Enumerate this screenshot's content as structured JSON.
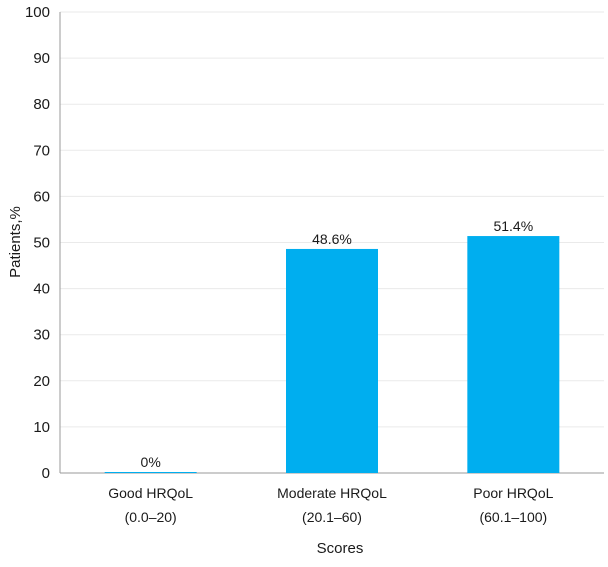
{
  "chart_data": {
    "type": "bar",
    "title": "",
    "xlabel": "Scores",
    "ylabel": "Patients,%",
    "ylim": [
      0,
      100
    ],
    "yticks": [
      0,
      10,
      20,
      30,
      40,
      50,
      60,
      70,
      80,
      90,
      100
    ],
    "grid": true,
    "categories": [
      [
        "Good HRQoL",
        "(0.0–20)"
      ],
      [
        "Moderate HRQoL",
        "(20.1–60)"
      ],
      [
        "Poor HRQoL",
        "(60.1–100)"
      ]
    ],
    "values": [
      0,
      48.6,
      51.4
    ],
    "data_labels": [
      "0%",
      "48.6%",
      "51.4%"
    ],
    "bar_color": "#00aeef"
  }
}
